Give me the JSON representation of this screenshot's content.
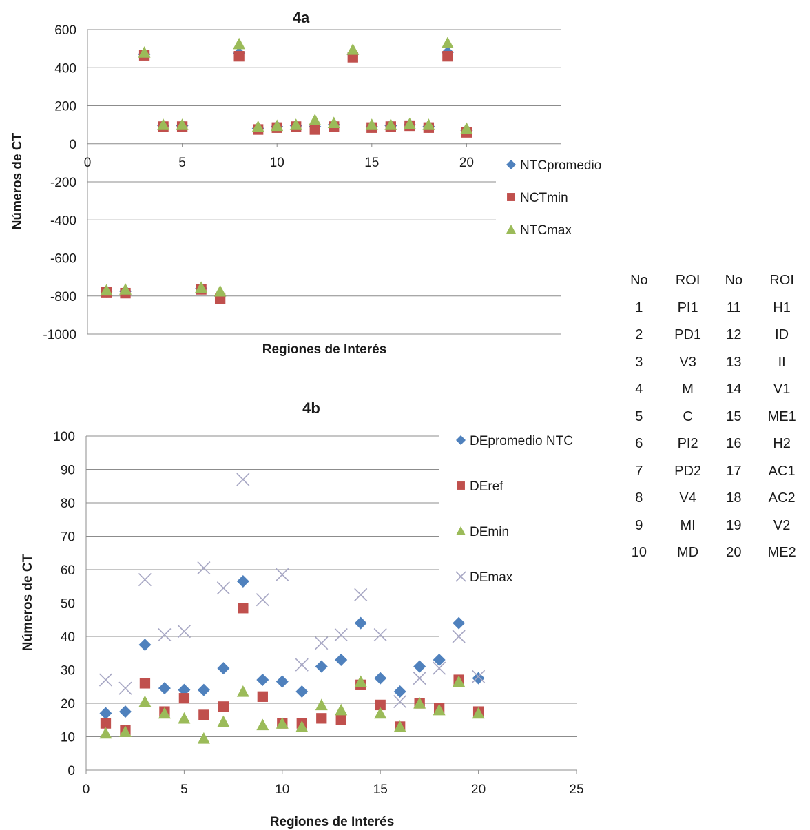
{
  "chart_data": [
    {
      "id": "4a",
      "type": "scatter",
      "title": "4a",
      "xlabel": "Regiones de Interés",
      "ylabel": "Números de CT",
      "xlim": [
        0,
        25
      ],
      "ylim": [
        -1000,
        600
      ],
      "xticks": [
        "0",
        "5",
        "10",
        "15",
        "20"
      ],
      "yticks": [
        "600",
        "400",
        "200",
        "0",
        "-200",
        "-400",
        "-600",
        "-800",
        "-1000"
      ],
      "legend_position": "right",
      "grid": "horizontal",
      "x": [
        1,
        2,
        3,
        4,
        5,
        6,
        7,
        8,
        9,
        10,
        11,
        12,
        13,
        14,
        15,
        16,
        17,
        18,
        19,
        20
      ],
      "series": [
        {
          "name": "NTCpromedio",
          "marker": "diamond",
          "color": "#4f81bd",
          "values": [
            -775,
            -775,
            470,
            95,
            95,
            -760,
            -800,
            475,
            80,
            90,
            95,
            90,
            100,
            470,
            90,
            95,
            100,
            90,
            480,
            70
          ]
        },
        {
          "name": "NCTmin",
          "marker": "square",
          "color": "#c0504d",
          "values": [
            -780,
            -785,
            465,
            90,
            90,
            -765,
            -815,
            460,
            75,
            85,
            90,
            75,
            90,
            455,
            85,
            90,
            95,
            85,
            460,
            60
          ]
        },
        {
          "name": "NTCmax",
          "marker": "triangle",
          "color": "#9bbb59",
          "values": [
            -770,
            -765,
            480,
            100,
            100,
            -755,
            -775,
            525,
            90,
            95,
            100,
            125,
            110,
            495,
            100,
            100,
            105,
            100,
            530,
            80
          ]
        }
      ]
    },
    {
      "id": "4b",
      "type": "scatter",
      "title": "4b",
      "xlabel": "Regiones de Interés",
      "ylabel": "Números de CT",
      "xlim": [
        0,
        25
      ],
      "ylim": [
        0,
        100
      ],
      "xticks": [
        "0",
        "5",
        "10",
        "15",
        "20",
        "25"
      ],
      "yticks": [
        "100",
        "90",
        "80",
        "70",
        "60",
        "50",
        "40",
        "30",
        "20",
        "10",
        "0"
      ],
      "legend_position": "right",
      "grid": "horizontal",
      "x": [
        1,
        2,
        3,
        4,
        5,
        6,
        7,
        8,
        9,
        10,
        11,
        12,
        13,
        14,
        15,
        16,
        17,
        18,
        19,
        20
      ],
      "series": [
        {
          "name": "DEpromedio NTC",
          "marker": "diamond",
          "color": "#4f81bd",
          "values": [
            17,
            17.5,
            37.5,
            24.5,
            24,
            24,
            30.5,
            56.5,
            27,
            26.5,
            23.5,
            31,
            33,
            44,
            27.5,
            23.5,
            31,
            33,
            44,
            27.5
          ]
        },
        {
          "name": "DEref",
          "marker": "square",
          "color": "#c0504d",
          "values": [
            14,
            12,
            26,
            17.5,
            21.5,
            16.5,
            19,
            48.5,
            22,
            14,
            14,
            15.5,
            15,
            25.5,
            19.5,
            13,
            20,
            18.5,
            27,
            17.5
          ]
        },
        {
          "name": "DEmin",
          "marker": "triangle",
          "color": "#9bbb59",
          "values": [
            11,
            11.5,
            20.5,
            17,
            15.5,
            9.5,
            14.5,
            23.5,
            13.5,
            14,
            13,
            19.5,
            18,
            26.5,
            17,
            13,
            20,
            18,
            26.5,
            17
          ]
        },
        {
          "name": "DEmax",
          "marker": "x",
          "color": "#a7a7c4",
          "values": [
            27,
            24.5,
            57,
            40.5,
            41.5,
            60.5,
            54.5,
            87,
            51,
            58.5,
            31.5,
            38,
            40.5,
            52.5,
            40.5,
            20.5,
            27.5,
            30.5,
            40,
            28
          ]
        }
      ]
    }
  ],
  "roi_table": {
    "headers": [
      "No",
      "ROI",
      "No",
      "ROI"
    ],
    "rows": [
      [
        "1",
        "PI1",
        "11",
        "H1"
      ],
      [
        "2",
        "PD1",
        "12",
        "ID"
      ],
      [
        "3",
        "V3",
        "13",
        "II"
      ],
      [
        "4",
        "M",
        "14",
        "V1"
      ],
      [
        "5",
        "C",
        "15",
        "ME1"
      ],
      [
        "6",
        "PI2",
        "16",
        "H2"
      ],
      [
        "7",
        "PD2",
        "17",
        "AC1"
      ],
      [
        "8",
        "V4",
        "18",
        "AC2"
      ],
      [
        "9",
        "MI",
        "19",
        "V2"
      ],
      [
        "10",
        "MD",
        "20",
        "ME2"
      ]
    ]
  }
}
